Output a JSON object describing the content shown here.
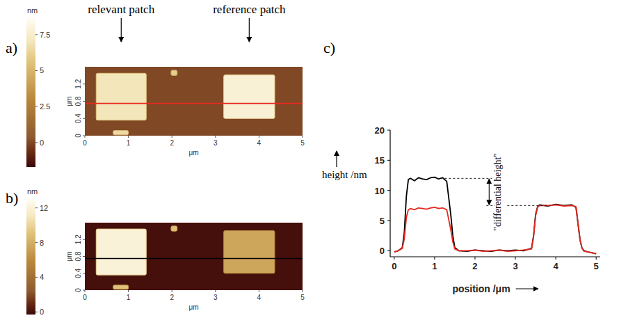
{
  "chart_data": [
    {
      "type": "image",
      "title": "a)",
      "annotations": [
        "relevant patch",
        "reference patch"
      ],
      "xlabel": "μm",
      "ylabel": "μm",
      "xlim": [
        0,
        5
      ],
      "xticks": [
        0,
        1,
        2,
        3,
        4,
        5
      ],
      "ylim": [
        0,
        1.6
      ],
      "yticks": [
        0,
        0.4,
        0.8,
        1.2
      ],
      "colorbar": {
        "label": "nm",
        "range": [
          -1.7,
          8.7
        ],
        "ticks": [
          0,
          2.5,
          5,
          7.5
        ]
      },
      "background": 0,
      "patches": [
        {
          "x0": 0.26,
          "x1": 1.41,
          "y0": 0.36,
          "y1": 1.45,
          "height": 7
        },
        {
          "x0": 3.19,
          "x1": 4.36,
          "y0": 0.4,
          "y1": 1.41,
          "height": 7.8
        },
        {
          "x0": 1.98,
          "x1": 2.12,
          "y0": 1.4,
          "y1": 1.52,
          "height": 6
        },
        {
          "x0": 0.65,
          "x1": 1.0,
          "y0": 0.02,
          "y1": 0.12,
          "height": 6.5
        }
      ],
      "profile": {
        "y": 0.75,
        "color": "#e8281e"
      }
    },
    {
      "type": "image",
      "title": "b)",
      "xlabel": "μm",
      "ylabel": "μm",
      "xlim": [
        0,
        5
      ],
      "xticks": [
        0,
        1,
        2,
        3,
        4,
        5
      ],
      "ylim": [
        0,
        1.6
      ],
      "yticks": [
        0,
        0.4,
        0.8,
        1.2
      ],
      "colorbar": {
        "label": "nm",
        "range": [
          -0.3,
          13.1
        ],
        "ticks": [
          0,
          4,
          8,
          12
        ]
      },
      "background": 0,
      "patches": [
        {
          "x0": 0.26,
          "x1": 1.41,
          "y0": 0.36,
          "y1": 1.45,
          "height": 12
        },
        {
          "x0": 3.19,
          "x1": 4.36,
          "y0": 0.4,
          "y1": 1.41,
          "height": 7.5
        },
        {
          "x0": 1.98,
          "x1": 2.12,
          "y0": 1.4,
          "y1": 1.52,
          "height": 9
        },
        {
          "x0": 0.65,
          "x1": 1.0,
          "y0": 0.02,
          "y1": 0.12,
          "height": 9
        }
      ],
      "profile": {
        "y": 0.75,
        "color": "#000000"
      }
    },
    {
      "type": "line",
      "title": "c)",
      "xlabel": "position /μm",
      "ylabel": "height /nm",
      "xlim": [
        -0.1,
        5.1
      ],
      "xticks": [
        0,
        1,
        2,
        3,
        4,
        5
      ],
      "ylim": [
        -1,
        20
      ],
      "yticks": [
        0,
        5,
        10,
        15,
        20
      ],
      "x": [
        0,
        0.1,
        0.2,
        0.25,
        0.3,
        0.35,
        0.4,
        0.5,
        0.6,
        0.7,
        0.8,
        0.9,
        1.0,
        1.1,
        1.2,
        1.3,
        1.4,
        1.45,
        1.5,
        1.6,
        1.8,
        2.0,
        2.2,
        2.4,
        2.6,
        2.8,
        3.0,
        3.2,
        3.4,
        3.45,
        3.5,
        3.55,
        3.6,
        3.8,
        4.0,
        4.2,
        4.4,
        4.5,
        4.55,
        4.6,
        4.65,
        4.7,
        4.8,
        5.0
      ],
      "series": [
        {
          "color": "#000000",
          "values": [
            -0.2,
            0,
            0.5,
            3,
            9,
            11.8,
            12.0,
            11.6,
            12.1,
            11.9,
            11.8,
            12.1,
            12.2,
            11.9,
            12.1,
            11.5,
            6,
            2.5,
            0.5,
            0,
            -0.1,
            0.1,
            0,
            -0.1,
            0.1,
            0,
            0.1,
            0,
            0.4,
            2.5,
            6,
            7.3,
            7.6,
            7.4,
            7.7,
            7.5,
            7.6,
            7.2,
            4.5,
            1.8,
            0.4,
            0,
            -0.2,
            -0.5
          ]
        },
        {
          "color": "#e8281e",
          "values": [
            -0.2,
            0,
            0.4,
            2,
            5.5,
            6.8,
            7.0,
            6.8,
            7.1,
            7.0,
            6.9,
            7.1,
            7.2,
            7.0,
            7.1,
            6.8,
            3.5,
            1.5,
            0.3,
            0,
            0,
            0.1,
            -0.1,
            0,
            0.1,
            -0.1,
            0,
            0.1,
            0.3,
            2.3,
            5.8,
            7.2,
            7.5,
            7.5,
            7.6,
            7.4,
            7.5,
            7.3,
            4.6,
            1.9,
            0.4,
            -0.1,
            -0.2,
            -0.5
          ]
        }
      ],
      "annotations": [
        {
          "text": "\"differential height\"",
          "from": 7.5,
          "to": 12
        }
      ]
    }
  ]
}
